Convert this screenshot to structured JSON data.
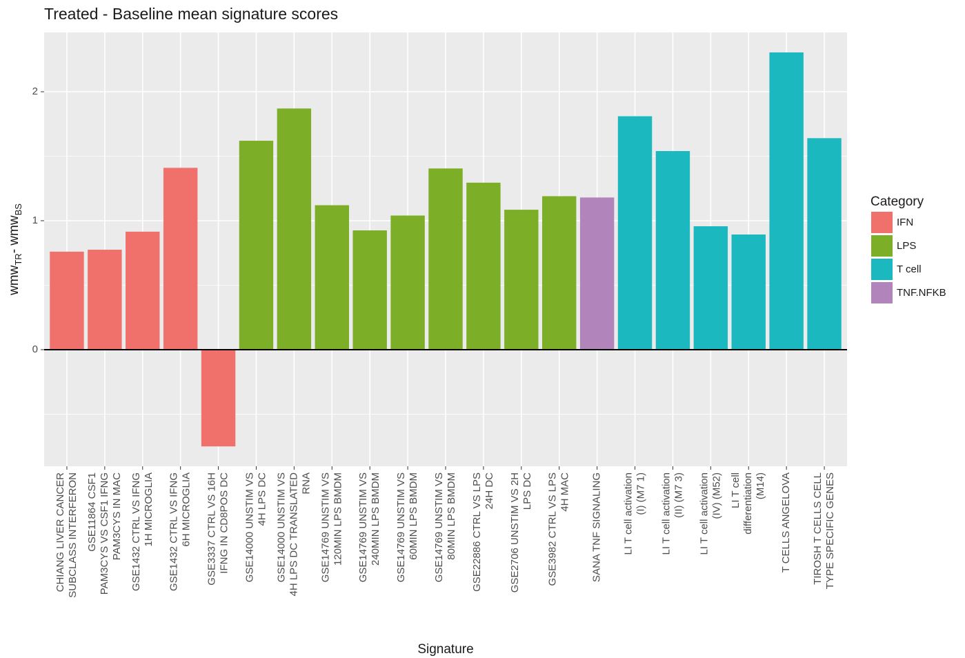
{
  "chart_data": {
    "type": "bar",
    "title": "Treated - Baseline mean  signature scores",
    "x_label": "Signature",
    "y_label": [
      {
        "text": "wmw"
      },
      {
        "text": "TR",
        "sub": true
      },
      {
        "text": "- wmw"
      },
      {
        "text": "BS",
        "sub": true
      }
    ],
    "legend_title": "Category",
    "categories": [
      "CHIANG LIVER CANCER\nSUBCLASS INTERFERON",
      "GSE11864 CSF1\nPAM3CYS VS CSF1 IFNG\nPAM3CYS IN MAC",
      "GSE1432 CTRL VS IFNG\n1H MICROGLIA",
      "GSE1432 CTRL VS IFNG\n6H MICROGLIA",
      "GSE3337 CTRL VS 16H\nIFNG IN CD8POS DC",
      "GSE14000 UNSTIM VS\n4H LPS DC",
      "GSE14000 UNSTIM VS\n4H LPS DC TRANSLATED\nRNA",
      "GSE14769 UNSTIM VS\n120MIN LPS BMDM",
      "GSE14769 UNSTIM VS\n240MIN LPS BMDM",
      "GSE14769 UNSTIM VS\n60MIN LPS BMDM",
      "GSE14769 UNSTIM VS\n80MIN LPS BMDM",
      "GSE22886 CTRL VS LPS\n24H DC",
      "GSE2706 UNSTIM VS 2H\nLPS DC",
      "GSE3982 CTRL VS LPS\n4H MAC",
      "SANA TNF SIGNALING",
      "LI T cell activation\n(I) (M7 1)",
      "LI T cell activation\n(II) (M7 3)",
      "LI T cell activation\n(IV) (M52)",
      "LI T cell\ndifferentiation\n(M14)",
      "T CELLS ANGELOVA",
      "TIROSH T CELLS CELL\nTYPE SPECIFIC GENES"
    ],
    "series": [
      {
        "name": "IFN",
        "color": "#f0716b",
        "values": [
          0.76,
          0.775,
          0.915,
          1.41,
          -0.75,
          null,
          null,
          null,
          null,
          null,
          null,
          null,
          null,
          null,
          null,
          null,
          null,
          null,
          null,
          null,
          null
        ]
      },
      {
        "name": "LPS",
        "color": "#7cae27",
        "values": [
          null,
          null,
          null,
          null,
          null,
          1.62,
          1.87,
          1.12,
          0.925,
          1.04,
          1.405,
          1.295,
          1.085,
          1.19,
          null,
          null,
          null,
          null,
          null,
          null,
          null
        ]
      },
      {
        "name": "T cell",
        "color": "#1cb8c0",
        "values": [
          null,
          null,
          null,
          null,
          null,
          null,
          null,
          null,
          null,
          null,
          null,
          null,
          null,
          null,
          null,
          1.81,
          1.54,
          0.957,
          0.893,
          2.305,
          1.64
        ]
      },
      {
        "name": "TNF.NFKB",
        "color": "#b185bc",
        "values": [
          null,
          null,
          null,
          null,
          null,
          null,
          null,
          null,
          null,
          null,
          null,
          null,
          null,
          null,
          1.18,
          null,
          null,
          null,
          null,
          null,
          null
        ]
      }
    ],
    "ylim": [
      -0.904,
      2.46
    ],
    "yticks": [
      0,
      1,
      2
    ],
    "grid": true
  }
}
